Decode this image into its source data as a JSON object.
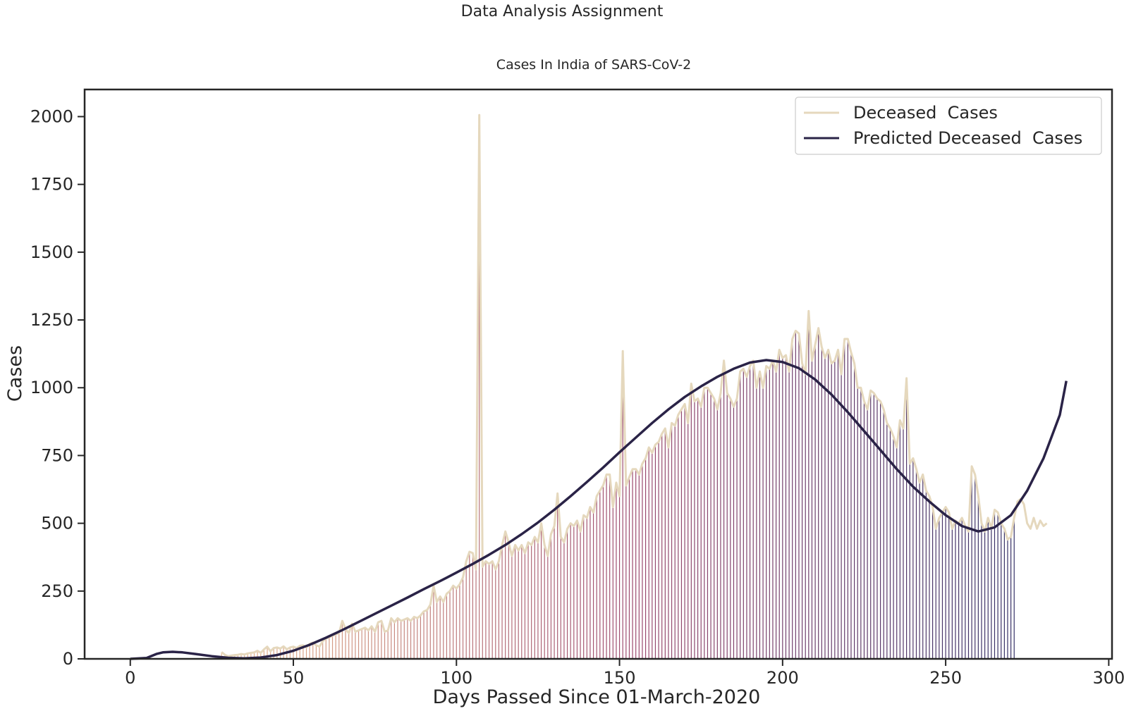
{
  "figure": {
    "suptitle": "Data Analysis Assignment"
  },
  "chart_data": {
    "type": "line",
    "title": "Cases In India of  SARS-CoV-2",
    "xlabel": "Days Passed Since 01-March-2020",
    "ylabel": "Cases",
    "xlim": [
      -14,
      301
    ],
    "ylim": [
      0,
      2100
    ],
    "xticks": [
      0,
      50,
      100,
      150,
      200,
      250,
      300
    ],
    "yticks": [
      0,
      250,
      500,
      750,
      1000,
      1250,
      1500,
      1750,
      2000
    ],
    "grid": false,
    "legend_position": "top-right",
    "colors": {
      "deceased": "#e5d8bd",
      "predicted": "#2a2347",
      "bar_start": "#e8b98f",
      "bar_mid": "#9c4a6e",
      "bar_end": "#2d2e66"
    },
    "series": [
      {
        "name": "Deceased  Cases",
        "x_start": 28,
        "x_step": 1,
        "values": [
          25,
          15,
          10,
          12,
          14,
          15,
          18,
          16,
          20,
          22,
          24,
          30,
          22,
          35,
          45,
          28,
          40,
          42,
          38,
          46,
          35,
          42,
          45,
          40,
          48,
          50,
          42,
          55,
          60,
          50,
          45,
          65,
          75,
          80,
          85,
          90,
          95,
          140,
          110,
          95,
          130,
          100,
          105,
          110,
          115,
          105,
          120,
          100,
          135,
          140,
          100,
          105,
          150,
          135,
          150,
          140,
          145,
          150,
          140,
          155,
          150,
          160,
          175,
          180,
          200,
          270,
          210,
          230,
          210,
          240,
          250,
          270,
          260,
          275,
          300,
          360,
          395,
          390,
          330,
          2006,
          340,
          360,
          350,
          360,
          330,
          360,
          420,
          470,
          430,
          380,
          420,
          400,
          420,
          390,
          430,
          420,
          450,
          430,
          500,
          420,
          380,
          460,
          490,
          610,
          450,
          430,
          480,
          500,
          490,
          510,
          470,
          530,
          520,
          560,
          540,
          600,
          620,
          640,
          680,
          680,
          560,
          650,
          600,
          1135,
          640,
          670,
          700,
          700,
          680,
          720,
          740,
          780,
          760,
          790,
          800,
          830,
          850,
          780,
          870,
          860,
          900,
          920,
          940,
          870,
          1015,
          950,
          960,
          930,
          1000,
          1000,
          980,
          960,
          920,
          980,
          1100,
          980,
          960,
          930,
          960,
          1060,
          1070,
          1040,
          1080,
          1100,
          1000,
          1060,
          1000,
          1080,
          1070,
          1100,
          1060,
          1140,
          1110,
          1120,
          1060,
          1180,
          1210,
          1200,
          1090,
          1050,
          1283,
          1100,
          1160,
          1220,
          1150,
          1110,
          1140,
          1090,
          1100,
          1140,
          1050,
          1180,
          1180,
          1130,
          1090,
          1000,
          1000,
          950,
          920,
          990,
          980,
          960,
          950,
          920,
          870,
          850,
          820,
          780,
          880,
          850,
          1035,
          720,
          740,
          700,
          650,
          680,
          620,
          600,
          560,
          480,
          520,
          540,
          560,
          540,
          480,
          510,
          500,
          520,
          490,
          470,
          710,
          680,
          600,
          500,
          470,
          520,
          480,
          550,
          540,
          500,
          480,
          440,
          450,
          520,
          580,
          590,
          570,
          500,
          480,
          520,
          480,
          510,
          490,
          500
        ]
      },
      {
        "name": "Predicted Deceased  Cases",
        "points": [
          [
            0,
            0
          ],
          [
            5,
            3
          ],
          [
            8,
            18
          ],
          [
            10,
            24
          ],
          [
            13,
            26
          ],
          [
            16,
            24
          ],
          [
            20,
            18
          ],
          [
            25,
            10
          ],
          [
            30,
            4
          ],
          [
            35,
            2
          ],
          [
            40,
            5
          ],
          [
            45,
            14
          ],
          [
            50,
            30
          ],
          [
            55,
            52
          ],
          [
            60,
            78
          ],
          [
            65,
            106
          ],
          [
            70,
            136
          ],
          [
            75,
            166
          ],
          [
            80,
            196
          ],
          [
            85,
            226
          ],
          [
            90,
            257
          ],
          [
            95,
            287
          ],
          [
            100,
            318
          ],
          [
            105,
            350
          ],
          [
            110,
            384
          ],
          [
            115,
            420
          ],
          [
            120,
            460
          ],
          [
            125,
            503
          ],
          [
            130,
            550
          ],
          [
            135,
            600
          ],
          [
            140,
            652
          ],
          [
            145,
            706
          ],
          [
            150,
            762
          ],
          [
            155,
            816
          ],
          [
            160,
            870
          ],
          [
            165,
            920
          ],
          [
            170,
            966
          ],
          [
            175,
            1005
          ],
          [
            180,
            1040
          ],
          [
            185,
            1070
          ],
          [
            190,
            1093
          ],
          [
            195,
            1102
          ],
          [
            200,
            1095
          ],
          [
            205,
            1072
          ],
          [
            210,
            1030
          ],
          [
            215,
            975
          ],
          [
            220,
            910
          ],
          [
            225,
            840
          ],
          [
            230,
            770
          ],
          [
            235,
            700
          ],
          [
            240,
            635
          ],
          [
            245,
            580
          ],
          [
            250,
            530
          ],
          [
            255,
            490
          ],
          [
            260,
            470
          ],
          [
            265,
            485
          ],
          [
            270,
            530
          ],
          [
            275,
            620
          ],
          [
            280,
            740
          ],
          [
            285,
            900
          ],
          [
            287,
            1025
          ]
        ]
      }
    ],
    "bars": {
      "x_start": 28,
      "x_end": 271,
      "values_follow": "Deceased  Cases"
    }
  }
}
